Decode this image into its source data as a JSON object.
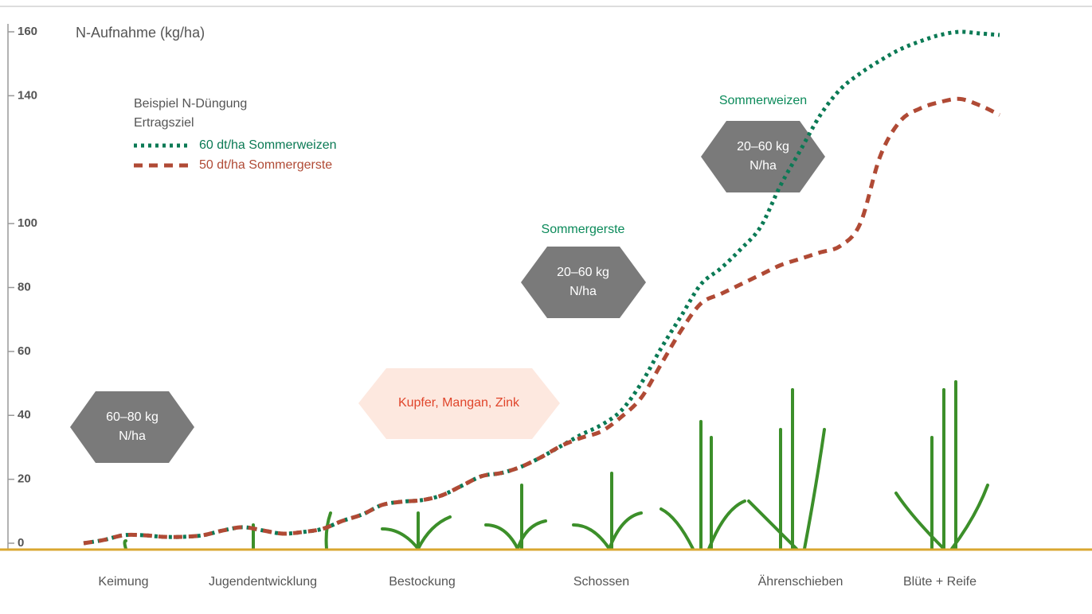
{
  "chart_data": {
    "type": "line",
    "y_label": "N-Aufnahme (kg/ha)",
    "categories": [
      null,
      null,
      "Keimung",
      null,
      null,
      null,
      null,
      null,
      null,
      "Jugendentwicklung",
      null,
      null,
      null,
      null,
      null,
      null,
      null,
      "Bestockung",
      null,
      null,
      null,
      null,
      null,
      null,
      null,
      null,
      "Schossen",
      null,
      null,
      null,
      null,
      null,
      null,
      null,
      null,
      null,
      "Ährenschieben",
      null,
      null,
      null,
      null,
      null,
      null,
      "Blüte + Reife",
      null,
      null,
      null
    ],
    "series": [
      {
        "name": "60 dt/ha Sommerweizen",
        "color": "#0b7a55",
        "values": [
          0,
          1,
          2.5,
          2.5,
          2,
          2,
          2.5,
          4,
          5,
          4,
          3,
          3.5,
          4.5,
          7,
          9,
          12,
          13,
          13.5,
          15,
          18,
          21,
          22,
          24,
          27,
          30.5,
          34,
          37,
          41.5,
          50,
          61,
          71,
          81,
          86,
          92,
          99,
          112,
          123,
          134,
          142,
          147,
          151,
          154.5,
          157,
          159,
          160,
          159.5,
          159
        ]
      },
      {
        "name": "50 dt/ha Sommergerste",
        "color": "#b04a35",
        "values": [
          0,
          1,
          2.5,
          2.5,
          2,
          2,
          2.5,
          4,
          5,
          4,
          3,
          3.5,
          4.5,
          7,
          9,
          12,
          13,
          13.5,
          15,
          18,
          21,
          22,
          24,
          27,
          30.5,
          33,
          35,
          39.5,
          45.5,
          56,
          66.5,
          75,
          78,
          81,
          84,
          87,
          89,
          91,
          93,
          100,
          121,
          132,
          136,
          138,
          139,
          137,
          134
        ]
      }
    ],
    "ylim": [
      0,
      160
    ],
    "yticks": [
      0,
      20,
      40,
      60,
      80,
      100,
      140,
      160
    ],
    "legend_title": [
      "Beispiel N-Düngung",
      "Ertragsziel"
    ],
    "annotations": [
      {
        "lines": [
          "60–80 kg",
          "N/ha"
        ]
      },
      {
        "text": "Kupfer, Mangan, Zink"
      },
      {
        "title": "Sommergerste",
        "lines": [
          "20–60 kg",
          "N/ha"
        ]
      },
      {
        "title": "Sommerweizen",
        "lines": [
          "20–60 kg",
          "N/ha"
        ]
      }
    ]
  }
}
